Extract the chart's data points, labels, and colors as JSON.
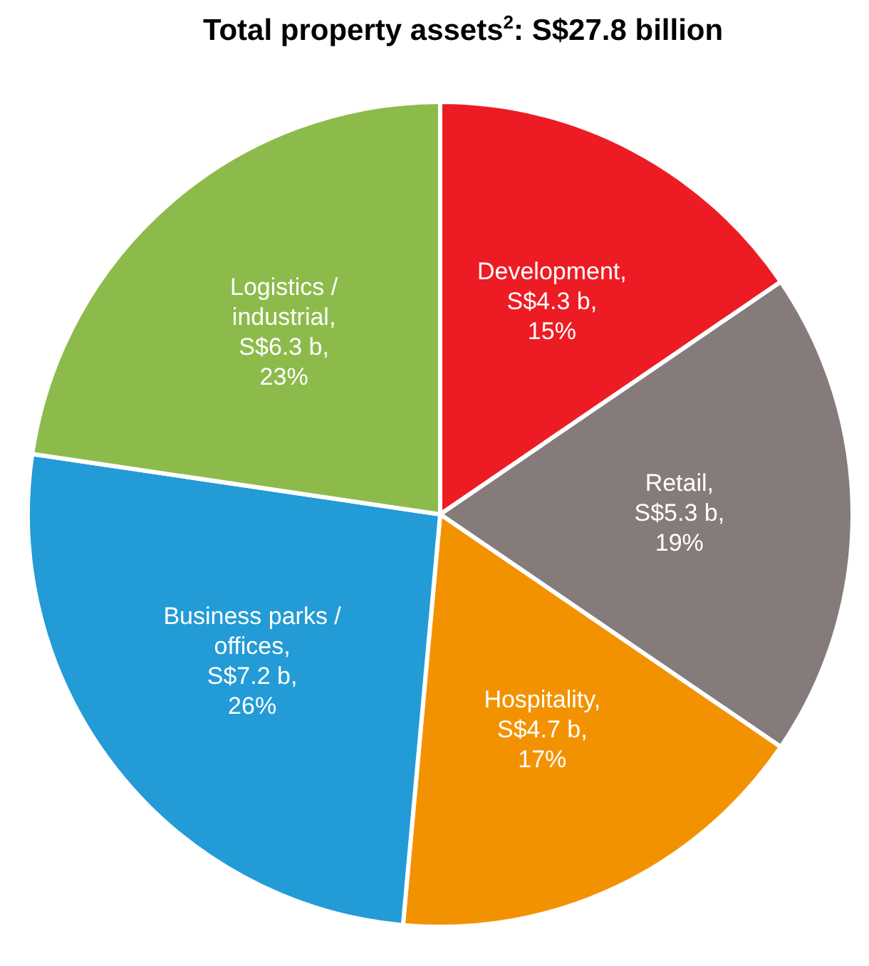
{
  "chart_data": {
    "type": "pie",
    "title": "Total property assets$^{2}$: S$27.8 billion",
    "categories": [
      "Development",
      "Retail",
      "Hospitality",
      "Business parks / offices",
      "Logistics / industrial"
    ],
    "values": [
      4.3,
      5.3,
      4.7,
      7.2,
      6.3
    ],
    "colors": [
      "#ed1c24",
      "#857b7b",
      "#f39200",
      "#239bd6",
      "#8cbb4c"
    ],
    "value_labels": [
      ",\nS$4.3 b,\n15%",
      ",\nS$5.3 b,\n19%",
      ",\nS$4.7 b,\n17%",
      ",\nS$7.2 b,\n26%",
      ",\nS$6.3 b,\n23%"
    ],
    "legend": false
  }
}
